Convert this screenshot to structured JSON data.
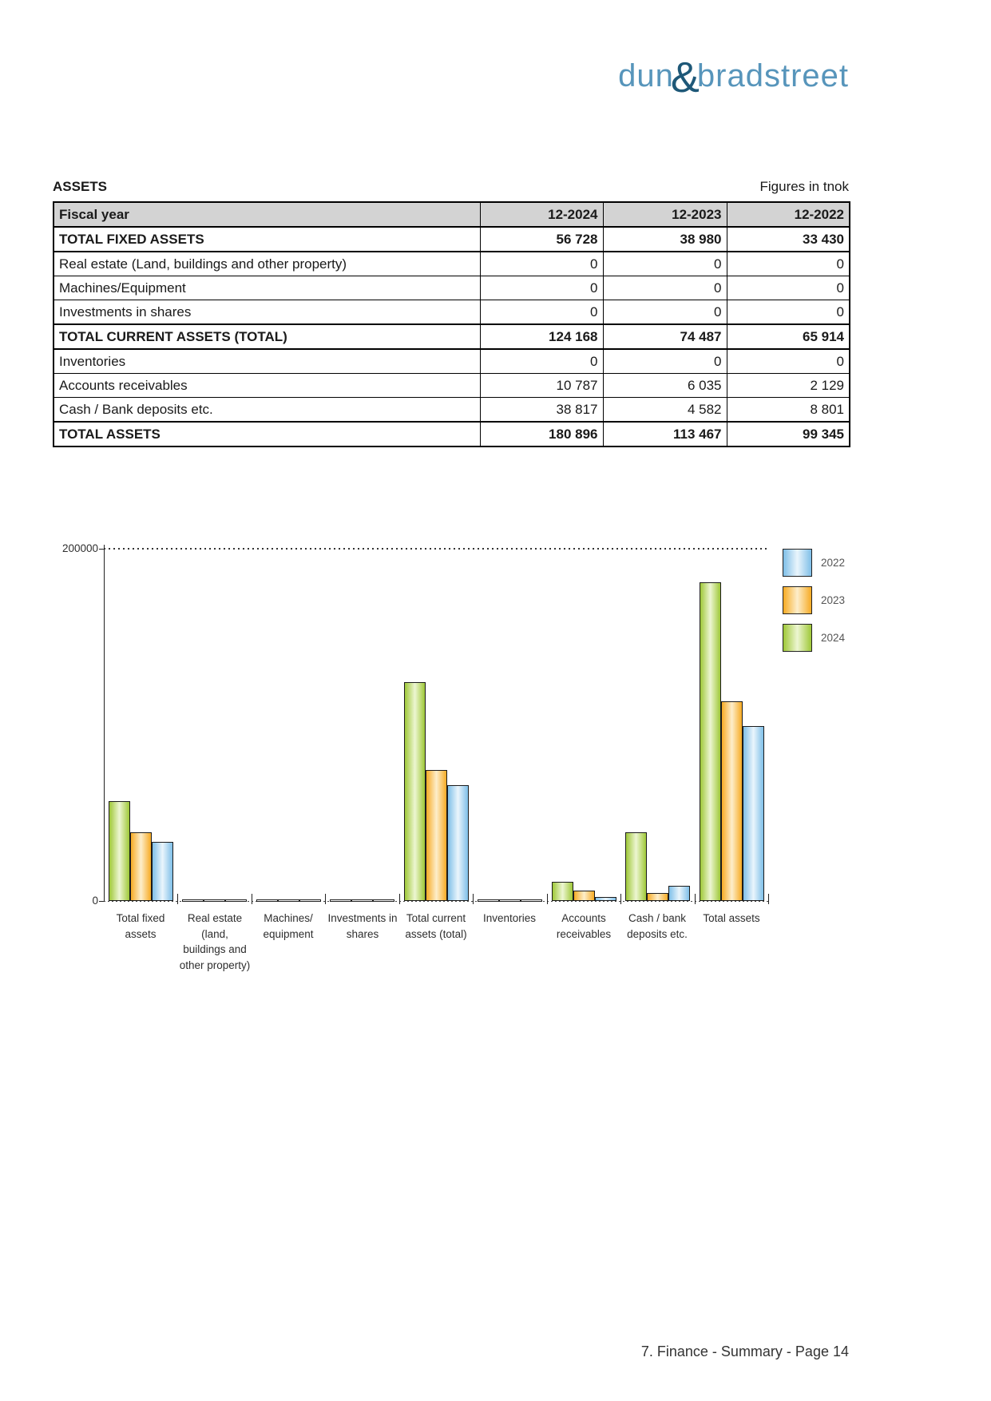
{
  "logo": {
    "word1": "dun",
    "ampersand": "&",
    "word2": "bradstreet"
  },
  "assets_section": {
    "title": "ASSETS",
    "unit_note": "Figures in tnok"
  },
  "table": {
    "columns": [
      "Fiscal year",
      "12-2024",
      "12-2023",
      "12-2022"
    ],
    "rows": [
      {
        "label": "TOTAL FIXED ASSETS",
        "values": [
          "56 728",
          "38 980",
          "33 430"
        ],
        "emphasis": true
      },
      {
        "label": "Real estate (Land, buildings and other property)",
        "values": [
          "0",
          "0",
          "0"
        ],
        "emphasis": false
      },
      {
        "label": "Machines/Equipment",
        "values": [
          "0",
          "0",
          "0"
        ],
        "emphasis": false
      },
      {
        "label": "Investments in shares",
        "values": [
          "0",
          "0",
          "0"
        ],
        "emphasis": false
      },
      {
        "label": "TOTAL CURRENT ASSETS (TOTAL)",
        "values": [
          "124 168",
          "74 487",
          "65 914"
        ],
        "emphasis": true
      },
      {
        "label": "Inventories",
        "values": [
          "0",
          "0",
          "0"
        ],
        "emphasis": false
      },
      {
        "label": "Accounts receivables",
        "values": [
          "10 787",
          "6 035",
          "2 129"
        ],
        "emphasis": false
      },
      {
        "label": "Cash / Bank deposits etc.",
        "values": [
          "38 817",
          "4 582",
          "8 801"
        ],
        "emphasis": false
      },
      {
        "label": "TOTAL ASSETS",
        "values": [
          "180 896",
          "113 467",
          "99 345"
        ],
        "emphasis": true
      }
    ]
  },
  "chart_data": {
    "type": "bar",
    "title": "",
    "categories": [
      [
        "Total fixed",
        "assets"
      ],
      [
        "Real estate",
        "(land,",
        "buildings and",
        "other property)"
      ],
      [
        "Machines/",
        "equipment"
      ],
      [
        "Investments in",
        "shares"
      ],
      [
        "Total current",
        "assets (total)"
      ],
      [
        "Inventories"
      ],
      [
        "Accounts",
        "receivables"
      ],
      [
        "Cash / bank",
        "deposits etc."
      ],
      [
        "Total assets"
      ]
    ],
    "series": [
      {
        "name": "2022",
        "color": "#7fbfe8",
        "color_light": "#eaf5fc",
        "values": [
          33430,
          0,
          0,
          0,
          65914,
          0,
          2129,
          8801,
          99345
        ]
      },
      {
        "name": "2023",
        "color": "#f7ab24",
        "color_light": "#fdeecb",
        "values": [
          38980,
          0,
          0,
          0,
          74487,
          0,
          6035,
          4582,
          113467
        ]
      },
      {
        "name": "2024",
        "color": "#9fc838",
        "color_light": "#edf6d2",
        "values": [
          56728,
          0,
          0,
          0,
          124168,
          0,
          10787,
          38817,
          180896
        ]
      }
    ],
    "bar_order_in_group": [
      "2024",
      "2023",
      "2022"
    ],
    "ylim": [
      0,
      200000
    ],
    "ytick_labels": [
      "0",
      "200000"
    ],
    "xlabel": "",
    "ylabel": "",
    "grid": "dotted line at y-max only",
    "legend_position": "top-right",
    "bar_border_color": "#1c1c1c"
  },
  "footer": {
    "text": "7. Finance - Summary - Page 14"
  }
}
